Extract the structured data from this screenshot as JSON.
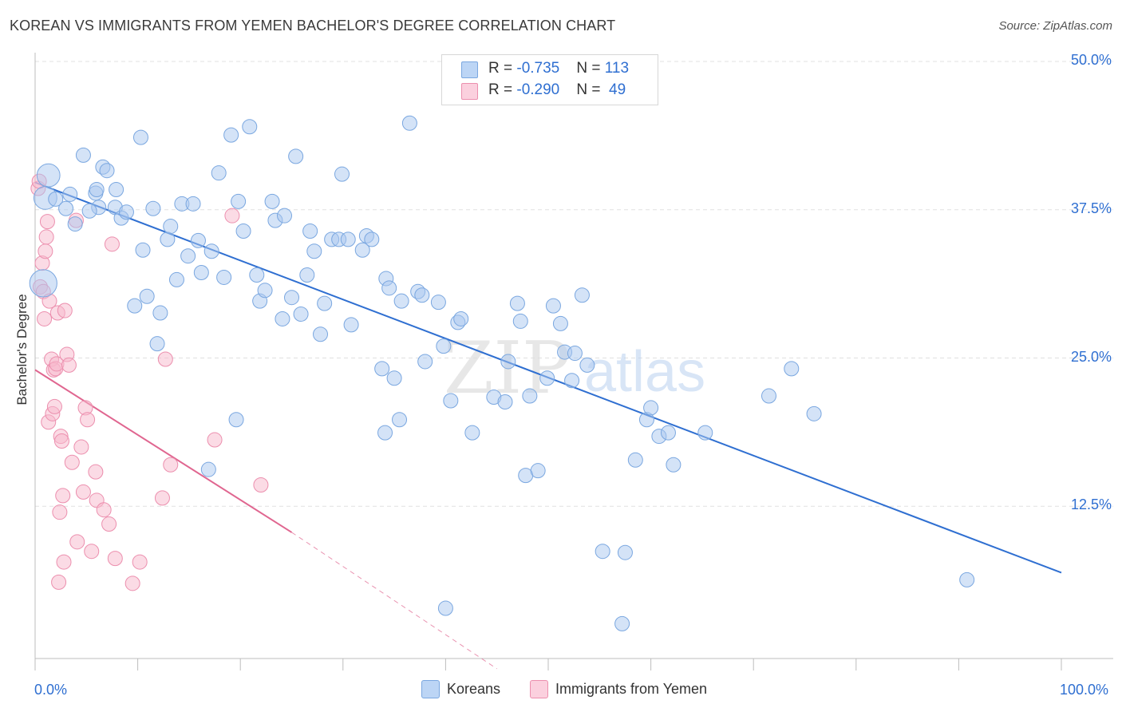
{
  "title": "KOREAN VS IMMIGRANTS FROM YEMEN BACHELOR'S DEGREE CORRELATION CHART",
  "source": "Source: ZipAtlas.com",
  "watermark": "ZIPatlas",
  "legend_top": {
    "rows": [
      {
        "r_label": "R = ",
        "r_value": "-0.735",
        "n_label": "N = ",
        "n_value": "113"
      },
      {
        "r_label": "R = ",
        "r_value": "-0.290",
        "n_label": "N = ",
        "n_value": " 49"
      }
    ]
  },
  "legend_bottom": {
    "items": [
      {
        "label": "Koreans"
      },
      {
        "label": "Immigrants from Yemen"
      }
    ]
  },
  "colors": {
    "blue": "#2f6fd1",
    "blue_fill": "#a9c8f0",
    "blue_stroke": "#7aa7e0",
    "pink": "#e06690",
    "pink_fill": "#f7b8cc",
    "pink_stroke": "#ec8fae",
    "grid": "#e0e0e0",
    "axis": "#bdbdbd"
  },
  "chart_data": {
    "type": "scatter",
    "title": "KOREAN VS IMMIGRANTS FROM YEMEN BACHELOR'S DEGREE CORRELATION CHART",
    "xlabel": "",
    "ylabel": "Bachelor's Degree",
    "xlim": [
      0,
      100
    ],
    "ylim": [
      0,
      50
    ],
    "x_tick_labels": [
      "0.0%",
      "100.0%"
    ],
    "y_ticks": [
      12.5,
      25.0,
      37.5,
      50.0
    ],
    "y_tick_labels": [
      "12.5%",
      "25.0%",
      "37.5%",
      "50.0%"
    ],
    "grid": true,
    "legend_position": "top-center",
    "series": [
      {
        "name": "Koreans",
        "color": "#2f6fd1",
        "r": -0.735,
        "n": 113,
        "trend": {
          "x0": 0,
          "y0": 39.8,
          "x1": 100,
          "y1": 6.9
        },
        "points": [
          [
            1.3,
            40.4,
            1.6
          ],
          [
            1.0,
            38.5,
            1.6
          ],
          [
            0.8,
            31.3,
            1.9
          ],
          [
            2.0,
            38.4,
            1.0
          ],
          [
            3.4,
            38.8,
            1.0
          ],
          [
            3.0,
            37.6,
            1.0
          ],
          [
            3.9,
            36.3,
            1.0
          ],
          [
            4.7,
            42.1,
            1.0
          ],
          [
            5.9,
            38.9,
            1.0
          ],
          [
            6.2,
            37.7,
            1.0
          ],
          [
            5.3,
            37.4,
            1.0
          ],
          [
            6.0,
            39.2,
            1.0
          ],
          [
            6.6,
            41.1,
            1.0
          ],
          [
            7.0,
            40.8,
            1.0
          ],
          [
            7.8,
            37.7,
            1.0
          ],
          [
            7.9,
            39.2,
            1.0
          ],
          [
            8.4,
            36.8,
            1.0
          ],
          [
            8.9,
            37.3,
            1.0
          ],
          [
            9.7,
            29.4,
            1.0
          ],
          [
            10.3,
            43.6,
            1.0
          ],
          [
            10.5,
            34.1,
            1.0
          ],
          [
            10.9,
            30.2,
            1.0
          ],
          [
            11.5,
            37.6,
            1.0
          ],
          [
            11.9,
            26.2,
            1.0
          ],
          [
            12.2,
            28.8,
            1.0
          ],
          [
            12.9,
            35.0,
            1.0
          ],
          [
            13.2,
            36.1,
            1.0
          ],
          [
            13.8,
            31.6,
            1.0
          ],
          [
            14.3,
            38.0,
            1.0
          ],
          [
            14.9,
            33.6,
            1.0
          ],
          [
            15.4,
            38.0,
            1.0
          ],
          [
            15.9,
            34.9,
            1.0
          ],
          [
            16.2,
            32.2,
            1.0
          ],
          [
            16.9,
            15.6,
            1.0
          ],
          [
            17.2,
            34.0,
            1.0
          ],
          [
            17.9,
            40.6,
            1.0
          ],
          [
            18.4,
            31.8,
            1.0
          ],
          [
            19.1,
            43.8,
            1.0
          ],
          [
            19.6,
            19.8,
            1.0
          ],
          [
            19.8,
            38.2,
            1.0
          ],
          [
            20.3,
            35.7,
            1.0
          ],
          [
            20.9,
            44.5,
            1.0
          ],
          [
            21.6,
            32.0,
            1.0
          ],
          [
            21.9,
            29.8,
            1.0
          ],
          [
            22.4,
            30.7,
            1.0
          ],
          [
            23.1,
            38.2,
            1.0
          ],
          [
            23.4,
            36.6,
            1.0
          ],
          [
            24.1,
            28.3,
            1.0
          ],
          [
            24.3,
            37.0,
            1.0
          ],
          [
            25.0,
            30.1,
            1.0
          ],
          [
            25.4,
            42.0,
            1.0
          ],
          [
            25.9,
            28.7,
            1.0
          ],
          [
            26.5,
            32.0,
            1.0
          ],
          [
            26.8,
            35.7,
            1.0
          ],
          [
            27.2,
            34.0,
            1.0
          ],
          [
            27.8,
            27.0,
            1.0
          ],
          [
            28.2,
            29.6,
            1.0
          ],
          [
            28.9,
            35.0,
            1.0
          ],
          [
            29.6,
            35.0,
            1.0
          ],
          [
            29.9,
            40.5,
            1.0
          ],
          [
            30.5,
            35.0,
            1.0
          ],
          [
            30.8,
            27.8,
            1.0
          ],
          [
            31.9,
            34.1,
            1.0
          ],
          [
            32.3,
            35.3,
            1.0
          ],
          [
            32.8,
            35.0,
            1.0
          ],
          [
            33.8,
            24.1,
            1.0
          ],
          [
            34.2,
            31.7,
            1.0
          ],
          [
            34.5,
            30.9,
            1.0
          ],
          [
            34.1,
            18.7,
            1.0
          ],
          [
            35.0,
            23.3,
            1.0
          ],
          [
            35.5,
            19.8,
            1.0
          ],
          [
            35.7,
            29.8,
            1.0
          ],
          [
            36.5,
            44.8,
            1.0
          ],
          [
            37.3,
            30.6,
            1.0
          ],
          [
            38.0,
            24.7,
            1.0
          ],
          [
            37.7,
            30.3,
            1.0
          ],
          [
            39.3,
            29.7,
            1.0
          ],
          [
            39.8,
            26.0,
            1.0
          ],
          [
            40.5,
            21.4,
            1.0
          ],
          [
            41.2,
            28.0,
            1.0
          ],
          [
            41.5,
            28.3,
            1.0
          ],
          [
            42.6,
            18.7,
            1.0
          ],
          [
            44.7,
            21.7,
            1.0
          ],
          [
            45.8,
            21.3,
            1.0
          ],
          [
            46.1,
            24.7,
            1.0
          ],
          [
            47.0,
            29.6,
            1.0
          ],
          [
            47.3,
            28.1,
            1.0
          ],
          [
            47.8,
            15.1,
            1.0
          ],
          [
            48.2,
            21.8,
            1.0
          ],
          [
            49.0,
            15.5,
            1.0
          ],
          [
            49.9,
            23.3,
            1.0
          ],
          [
            50.5,
            29.4,
            1.0
          ],
          [
            51.2,
            27.9,
            1.0
          ],
          [
            51.6,
            25.5,
            1.0
          ],
          [
            52.3,
            23.1,
            1.0
          ],
          [
            52.6,
            25.4,
            1.0
          ],
          [
            53.3,
            30.3,
            1.0
          ],
          [
            53.8,
            24.4,
            1.0
          ],
          [
            55.3,
            8.7,
            1.0
          ],
          [
            57.2,
            2.6,
            1.0
          ],
          [
            57.5,
            8.6,
            1.0
          ],
          [
            58.5,
            16.4,
            1.0
          ],
          [
            59.6,
            19.8,
            1.0
          ],
          [
            60.0,
            20.8,
            1.0
          ],
          [
            60.8,
            18.4,
            1.0
          ],
          [
            61.7,
            18.7,
            1.0
          ],
          [
            62.2,
            16.0,
            1.0
          ],
          [
            65.3,
            18.7,
            1.0
          ],
          [
            71.5,
            21.8,
            1.0
          ],
          [
            73.7,
            24.1,
            1.0
          ],
          [
            75.9,
            20.3,
            1.0
          ],
          [
            90.8,
            6.3,
            1.0
          ],
          [
            40.0,
            3.9,
            1.0
          ]
        ]
      },
      {
        "name": "Immigrants from Yemen",
        "color": "#e06690",
        "r": -0.29,
        "n": 49,
        "trend": {
          "x0": 0,
          "y0": 24.0,
          "x1": 25.0,
          "y1": 10.3,
          "dash_x1": 45,
          "dash_y1": -1.2
        },
        "points": [
          [
            0.3,
            39.3,
            1.0
          ],
          [
            0.5,
            31.0,
            1.0
          ],
          [
            0.7,
            33.0,
            1.0
          ],
          [
            0.8,
            30.6,
            1.0
          ],
          [
            0.9,
            28.3,
            1.0
          ],
          [
            1.0,
            34.0,
            1.0
          ],
          [
            1.1,
            35.2,
            1.0
          ],
          [
            1.2,
            36.5,
            1.0
          ],
          [
            1.3,
            19.6,
            1.0
          ],
          [
            1.4,
            29.8,
            1.0
          ],
          [
            1.6,
            24.9,
            1.0
          ],
          [
            1.7,
            20.3,
            1.0
          ],
          [
            1.8,
            24.0,
            1.0
          ],
          [
            1.9,
            20.9,
            1.0
          ],
          [
            2.0,
            24.1,
            1.0
          ],
          [
            2.1,
            24.5,
            1.0
          ],
          [
            2.2,
            28.8,
            1.0
          ],
          [
            2.3,
            6.1,
            1.0
          ],
          [
            2.4,
            12.0,
            1.0
          ],
          [
            2.5,
            18.4,
            1.0
          ],
          [
            2.6,
            18.0,
            1.0
          ],
          [
            2.7,
            13.4,
            1.0
          ],
          [
            2.8,
            7.8,
            1.0
          ],
          [
            2.9,
            29.0,
            1.0
          ],
          [
            3.1,
            25.3,
            1.0
          ],
          [
            3.3,
            24.4,
            1.0
          ],
          [
            3.6,
            16.2,
            1.0
          ],
          [
            4.0,
            36.6,
            1.0
          ],
          [
            4.1,
            9.5,
            1.0
          ],
          [
            4.5,
            17.5,
            1.0
          ],
          [
            4.7,
            13.7,
            1.0
          ],
          [
            4.9,
            20.8,
            1.0
          ],
          [
            5.1,
            19.8,
            1.0
          ],
          [
            5.5,
            8.7,
            1.0
          ],
          [
            5.9,
            15.4,
            1.0
          ],
          [
            6.0,
            13.0,
            1.0
          ],
          [
            6.7,
            12.2,
            1.0
          ],
          [
            7.2,
            11.0,
            1.0
          ],
          [
            7.5,
            34.6,
            1.0
          ],
          [
            7.8,
            8.1,
            1.0
          ],
          [
            9.5,
            6.0,
            1.0
          ],
          [
            10.2,
            7.8,
            1.0
          ],
          [
            12.4,
            13.2,
            1.0
          ],
          [
            12.7,
            24.9,
            1.0
          ],
          [
            13.2,
            16.0,
            1.0
          ],
          [
            17.5,
            18.1,
            1.0
          ],
          [
            19.2,
            37.0,
            1.0
          ],
          [
            22.0,
            14.3,
            1.0
          ],
          [
            0.4,
            39.9,
            1.0
          ]
        ]
      }
    ]
  }
}
